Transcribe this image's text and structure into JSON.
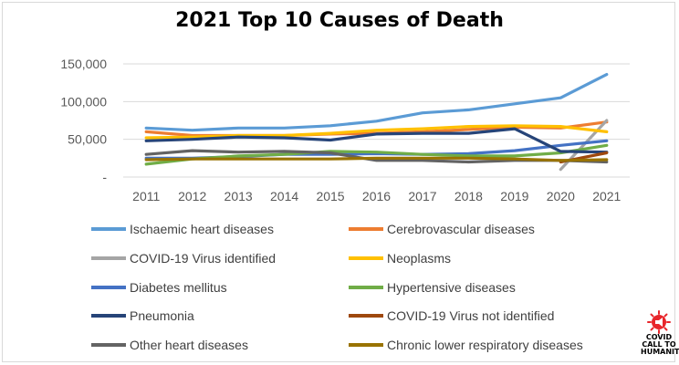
{
  "chart_data": {
    "type": "line",
    "title": "2021 Top 10 Causes of Death",
    "xlabel": "",
    "ylabel": "",
    "x": [
      "2011",
      "2012",
      "2013",
      "2014",
      "2015",
      "2016",
      "2017",
      "2018",
      "2019",
      "2020",
      "2021"
    ],
    "ylim": [
      0,
      150000
    ],
    "yticks": [
      0,
      50000,
      100000,
      150000
    ],
    "ytick_labels": [
      "-",
      "50,000",
      "100,000",
      "150,000"
    ],
    "grid": "horizontal",
    "legend_position": "bottom",
    "series": [
      {
        "name": "Ischaemic heart diseases",
        "color": "#5b9bd5",
        "values": [
          65000,
          62000,
          65000,
          65000,
          68000,
          74000,
          85000,
          89000,
          97000,
          105000,
          136000
        ]
      },
      {
        "name": "Cerebrovascular diseases",
        "color": "#ed7d31",
        "values": [
          60000,
          55000,
          55000,
          55000,
          57000,
          58000,
          60000,
          63000,
          66000,
          65000,
          73000
        ]
      },
      {
        "name": "COVID-19 Virus identified",
        "color": "#a5a5a5",
        "values": [
          null,
          null,
          null,
          null,
          null,
          null,
          null,
          null,
          null,
          10000,
          75000
        ]
      },
      {
        "name": "Neoplasms",
        "color": "#ffc000",
        "values": [
          52000,
          53000,
          55000,
          55000,
          58000,
          62000,
          64000,
          67000,
          68000,
          67000,
          60000
        ]
      },
      {
        "name": "Diabetes mellitus",
        "color": "#4472c4",
        "values": [
          25000,
          25000,
          27000,
          30000,
          30000,
          31000,
          30000,
          31000,
          35000,
          42000,
          48000
        ]
      },
      {
        "name": "Hypertensive diseases",
        "color": "#70ad47",
        "values": [
          17000,
          24000,
          28000,
          30000,
          34000,
          33000,
          30000,
          28000,
          28000,
          32000,
          42000
        ]
      },
      {
        "name": "Pneumonia",
        "color": "#264478",
        "values": [
          48000,
          50000,
          53000,
          52000,
          49000,
          57000,
          58000,
          58000,
          64000,
          34000,
          33000
        ]
      },
      {
        "name": "COVID-19 Virus not identified",
        "color": "#9e480e",
        "values": [
          null,
          null,
          null,
          null,
          null,
          null,
          null,
          null,
          null,
          20000,
          32000
        ]
      },
      {
        "name": "Other heart diseases",
        "color": "#636363",
        "values": [
          30000,
          35000,
          33000,
          34000,
          32000,
          22000,
          22000,
          20000,
          22000,
          22000,
          20000
        ]
      },
      {
        "name": "Chronic lower respiratory diseases",
        "color": "#997300",
        "values": [
          23000,
          24000,
          24000,
          24000,
          24000,
          25000,
          25000,
          25000,
          24000,
          22000,
          23000
        ]
      }
    ]
  },
  "logo": {
    "lines": [
      "COVID",
      "CALL TO",
      "HUMANITY"
    ],
    "icon": "virus-megaphone-icon",
    "color": "#e8262b"
  }
}
